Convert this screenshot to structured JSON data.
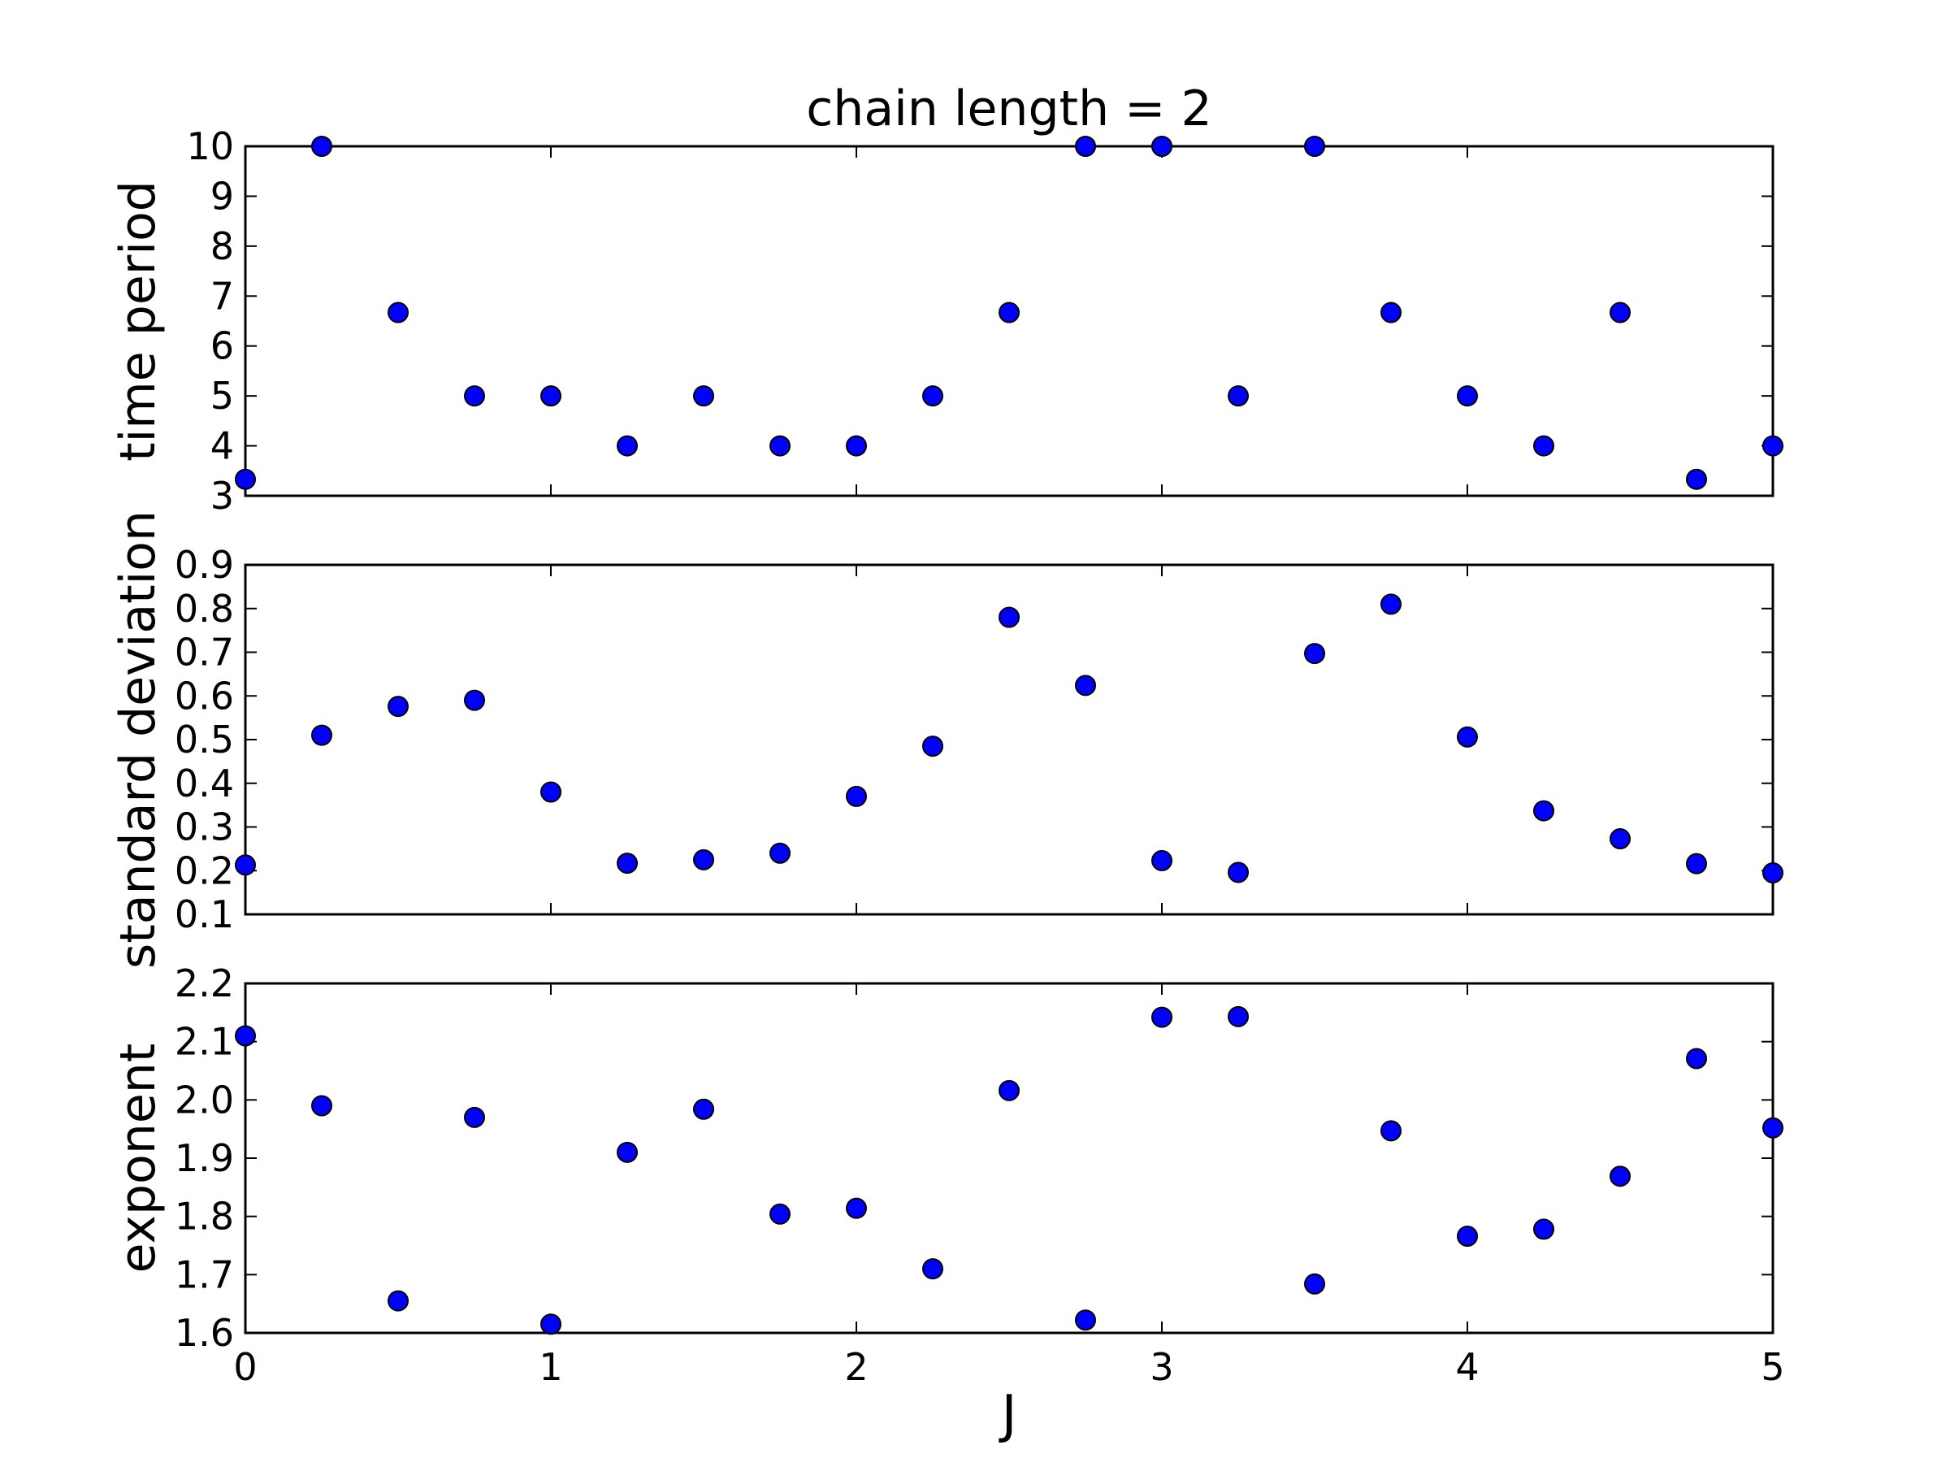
{
  "chart_data": {
    "type": "scatter",
    "title": "chain length = 2",
    "xlabel": "J",
    "xlim": [
      0,
      5
    ],
    "xticks": [
      "0",
      "1",
      "2",
      "3",
      "4",
      "5"
    ],
    "x": [
      0,
      0.25,
      0.5,
      0.75,
      1.0,
      1.25,
      1.5,
      1.75,
      2.0,
      2.25,
      2.5,
      2.75,
      3.0,
      3.25,
      3.5,
      3.75,
      4.0,
      4.25,
      4.5,
      4.75,
      5.0
    ],
    "marker_color": "#0000ff",
    "marker_edge_color": "#000000",
    "grid": false,
    "subplots": [
      {
        "ylabel": "time period",
        "ylim": [
          3,
          10
        ],
        "yticks": [
          "3",
          "4",
          "5",
          "6",
          "7",
          "8",
          "9",
          "10"
        ],
        "values": [
          3.33,
          10,
          6.67,
          5,
          5,
          4,
          5,
          4,
          4,
          5,
          6.67,
          10,
          10,
          5,
          10,
          6.67,
          5,
          4,
          6.67,
          3.33,
          4
        ]
      },
      {
        "ylabel": "standard deviation",
        "ylim": [
          0.1,
          0.9
        ],
        "yticks": [
          "0.1",
          "0.2",
          "0.3",
          "0.4",
          "0.5",
          "0.6",
          "0.7",
          "0.8",
          "0.9"
        ],
        "values": [
          0.213,
          0.51,
          0.576,
          0.59,
          0.38,
          0.217,
          0.225,
          0.24,
          0.37,
          0.485,
          0.78,
          0.624,
          0.223,
          0.196,
          0.697,
          0.81,
          0.506,
          0.337,
          0.273,
          0.216,
          0.195
        ]
      },
      {
        "ylabel": "exponent",
        "ylim": [
          1.6,
          2.2
        ],
        "yticks": [
          "1.6",
          "1.7",
          "1.8",
          "1.9",
          "2.0",
          "2.1",
          "2.2"
        ],
        "values": [
          2.11,
          1.99,
          1.655,
          1.97,
          1.615,
          1.91,
          1.984,
          1.804,
          1.814,
          1.71,
          2.016,
          1.622,
          2.142,
          2.143,
          1.684,
          1.947,
          1.766,
          1.778,
          1.869,
          2.071,
          1.952
        ]
      }
    ]
  }
}
